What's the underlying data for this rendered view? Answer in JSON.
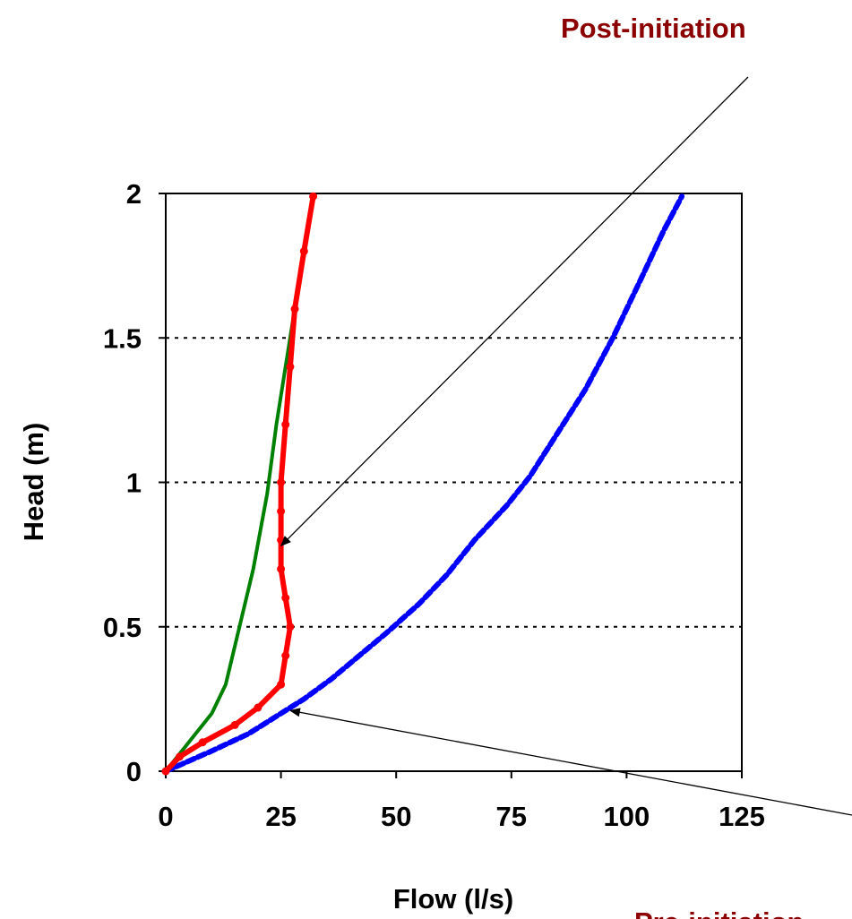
{
  "chart_data": {
    "type": "line",
    "xlabel": "Flow (l/s)",
    "ylabel": "Head (m)",
    "xlim": [
      0,
      125
    ],
    "ylim": [
      0,
      2
    ],
    "x_ticks": [
      "0",
      "25",
      "50",
      "75",
      "100",
      "125"
    ],
    "y_ticks": [
      "0",
      "0.5",
      "1",
      "1.5",
      "2"
    ],
    "grid": "horizontal dotted",
    "series": [
      {
        "color": "#0000ff",
        "style": "dashed-thick",
        "points": [
          [
            0,
            0
          ],
          [
            10,
            0.07
          ],
          [
            18,
            0.13
          ],
          [
            25,
            0.2
          ],
          [
            30,
            0.25
          ],
          [
            36,
            0.32
          ],
          [
            42,
            0.4
          ],
          [
            48,
            0.48
          ],
          [
            55,
            0.58
          ],
          [
            61,
            0.68
          ],
          [
            67,
            0.8
          ],
          [
            74,
            0.92
          ],
          [
            79,
            1.02
          ],
          [
            85,
            1.17
          ],
          [
            91,
            1.32
          ],
          [
            97,
            1.5
          ],
          [
            103,
            1.7
          ],
          [
            108,
            1.87
          ],
          [
            112,
            1.99
          ]
        ]
      },
      {
        "color": "#008000",
        "style": "solid",
        "points": [
          [
            0,
            0
          ],
          [
            5,
            0.1
          ],
          [
            10,
            0.2
          ],
          [
            13,
            0.3
          ],
          [
            16,
            0.5
          ],
          [
            19,
            0.7
          ],
          [
            22,
            0.96
          ],
          [
            24,
            1.2
          ],
          [
            26,
            1.4
          ],
          [
            28,
            1.6
          ],
          [
            30,
            1.8
          ],
          [
            32,
            1.99
          ]
        ]
      },
      {
        "color": "#ff0000",
        "style": "solid-thick-markers",
        "points": [
          [
            0,
            0
          ],
          [
            3,
            0.05
          ],
          [
            8,
            0.1
          ],
          [
            15,
            0.16
          ],
          [
            20,
            0.22
          ],
          [
            25,
            0.3
          ],
          [
            26,
            0.4
          ],
          [
            27,
            0.5
          ],
          [
            26,
            0.6
          ],
          [
            25,
            0.7
          ],
          [
            25,
            0.8
          ],
          [
            25,
            0.9
          ],
          [
            25,
            1.0
          ],
          [
            26,
            1.2
          ],
          [
            27,
            1.4
          ],
          [
            28,
            1.6
          ],
          [
            30,
            1.8
          ],
          [
            32,
            1.99
          ]
        ]
      }
    ],
    "annotations": [
      {
        "text": "Post-initiation",
        "points_to": [
          25,
          0.78
        ]
      },
      {
        "text": "Pre-initiation",
        "points_to": [
          27,
          0.21
        ]
      }
    ]
  }
}
